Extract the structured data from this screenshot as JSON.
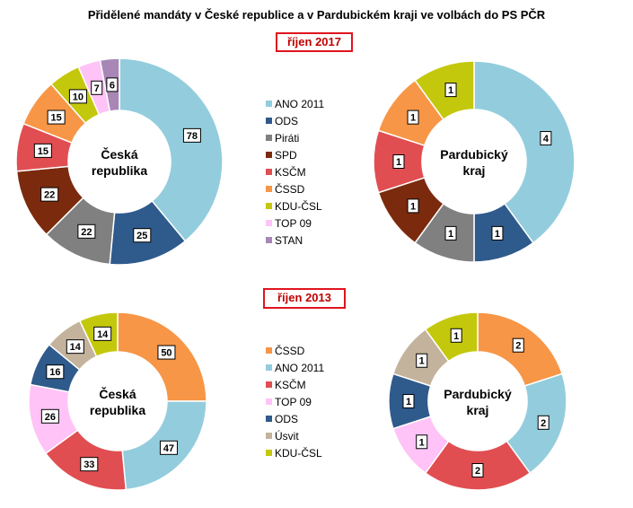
{
  "title": "Přidělené mandáty v České republice a v Pardubickém kraji ve volbách do PS PČR",
  "periods": [
    "říjen 2017",
    "říjen 2013"
  ],
  "chart_data": [
    {
      "type": "pie",
      "variant": "donut",
      "period": "říjen 2017",
      "center_label": [
        "Česká",
        "republika"
      ],
      "categories": [
        "ANO 2011",
        "ODS",
        "Piráti",
        "SPD",
        "KSČM",
        "ČSSD",
        "KDU-ČSL",
        "TOP 09",
        "STAN"
      ],
      "values": [
        78,
        25,
        22,
        22,
        15,
        15,
        10,
        7,
        6
      ],
      "colors": [
        "#93cddd",
        "#2f5a8c",
        "#808080",
        "#7b2a0e",
        "#e04e52",
        "#f79646",
        "#c4c80c",
        "#ffc3f7",
        "#a887b6"
      ]
    },
    {
      "type": "pie",
      "variant": "donut",
      "period": "říjen 2017",
      "center_label": [
        "Pardubický",
        "kraj"
      ],
      "categories": [
        "ANO 2011",
        "ODS",
        "Piráti",
        "SPD",
        "KSČM",
        "ČSSD",
        "KDU-ČSL"
      ],
      "values": [
        4,
        1,
        1,
        1,
        1,
        1,
        1
      ],
      "colors": [
        "#93cddd",
        "#2f5a8c",
        "#808080",
        "#7b2a0e",
        "#e04e52",
        "#f79646",
        "#c4c80c"
      ]
    },
    {
      "type": "pie",
      "variant": "donut",
      "period": "říjen 2013",
      "center_label": [
        "Česká",
        "republika"
      ],
      "categories": [
        "ČSSD",
        "ANO 2011",
        "KSČM",
        "TOP 09",
        "ODS",
        "Úsvit",
        "KDU-ČSL"
      ],
      "values": [
        50,
        47,
        33,
        26,
        16,
        14,
        14
      ],
      "colors": [
        "#f79646",
        "#93cddd",
        "#e04e52",
        "#ffc3f7",
        "#2f5a8c",
        "#c4b39c",
        "#c4c80c"
      ]
    },
    {
      "type": "pie",
      "variant": "donut",
      "period": "říjen 2013",
      "center_label": [
        "Pardubický",
        "kraj"
      ],
      "categories": [
        "ČSSD",
        "ANO 2011",
        "KSČM",
        "TOP 09",
        "ODS",
        "Úsvit",
        "KDU-ČSL"
      ],
      "values": [
        2,
        2,
        2,
        1,
        1,
        1,
        1
      ],
      "colors": [
        "#f79646",
        "#93cddd",
        "#e04e52",
        "#ffc3f7",
        "#2f5a8c",
        "#c4b39c",
        "#c4c80c"
      ]
    }
  ],
  "legends": [
    {
      "entries": [
        "ANO 2011",
        "ODS",
        "Piráti",
        "SPD",
        "KSČM",
        "ČSSD",
        "KDU-ČSL",
        "TOP 09",
        "STAN"
      ],
      "colors": [
        "#93cddd",
        "#2f5a8c",
        "#808080",
        "#7b2a0e",
        "#e04e52",
        "#f79646",
        "#c4c80c",
        "#ffc3f7",
        "#a887b6"
      ]
    },
    {
      "entries": [
        "ČSSD",
        "ANO 2011",
        "KSČM",
        "TOP 09",
        "ODS",
        "Úsvit",
        "KDU-ČSL"
      ],
      "colors": [
        "#f79646",
        "#93cddd",
        "#e04e52",
        "#ffc3f7",
        "#2f5a8c",
        "#c4b39c",
        "#c4c80c"
      ]
    }
  ]
}
